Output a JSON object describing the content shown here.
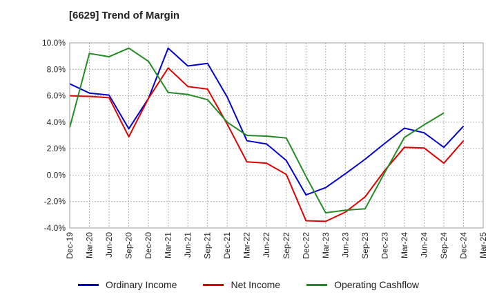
{
  "chart_data": {
    "type": "line",
    "title": "[6629]  Trend of Margin",
    "xlabel": "",
    "ylabel": "",
    "ylim": [
      -4,
      10
    ],
    "yticks": [
      -4,
      -2,
      0,
      2,
      4,
      6,
      8,
      10
    ],
    "ytick_labels": [
      "-4.0%",
      "-2.0%",
      "0.0%",
      "2.0%",
      "4.0%",
      "6.0%",
      "8.0%",
      "10.0%"
    ],
    "grid": true,
    "legend_position": "bottom",
    "categories": [
      "Dec-19",
      "Mar-20",
      "Jun-20",
      "Sep-20",
      "Dec-20",
      "Mar-21",
      "Jun-21",
      "Sep-21",
      "Dec-21",
      "Mar-22",
      "Jun-22",
      "Sep-22",
      "Dec-22",
      "Mar-23",
      "Jun-23",
      "Sep-23",
      "Dec-23",
      "Mar-24",
      "Jun-24",
      "Sep-24",
      "Dec-24",
      "Mar-25"
    ],
    "series": [
      {
        "name": "Ordinary Income",
        "color": "#0000cc",
        "values": [
          6.9,
          6.2,
          6.05,
          3.5,
          5.8,
          9.6,
          8.25,
          8.45,
          5.9,
          2.6,
          2.35,
          1.1,
          -1.5,
          -0.95,
          0.1,
          1.2,
          2.4,
          3.55,
          3.2,
          2.1,
          3.7,
          null
        ]
      },
      {
        "name": "Net Income",
        "color": "#dd0000",
        "values": [
          6.0,
          5.95,
          5.85,
          2.9,
          5.8,
          8.1,
          6.7,
          6.5,
          3.85,
          1.0,
          0.9,
          0.05,
          -3.45,
          -3.5,
          -2.8,
          -1.65,
          0.35,
          2.1,
          2.05,
          0.9,
          2.6,
          null
        ]
      },
      {
        "name": "Operating Cashflow",
        "color": "#228b22",
        "values": [
          3.6,
          9.2,
          8.95,
          9.6,
          8.6,
          6.25,
          6.1,
          5.7,
          4.0,
          3.0,
          2.95,
          2.8,
          -0.1,
          -2.85,
          -2.65,
          -2.55,
          0.2,
          2.85,
          3.8,
          4.7,
          null,
          null
        ]
      }
    ]
  }
}
